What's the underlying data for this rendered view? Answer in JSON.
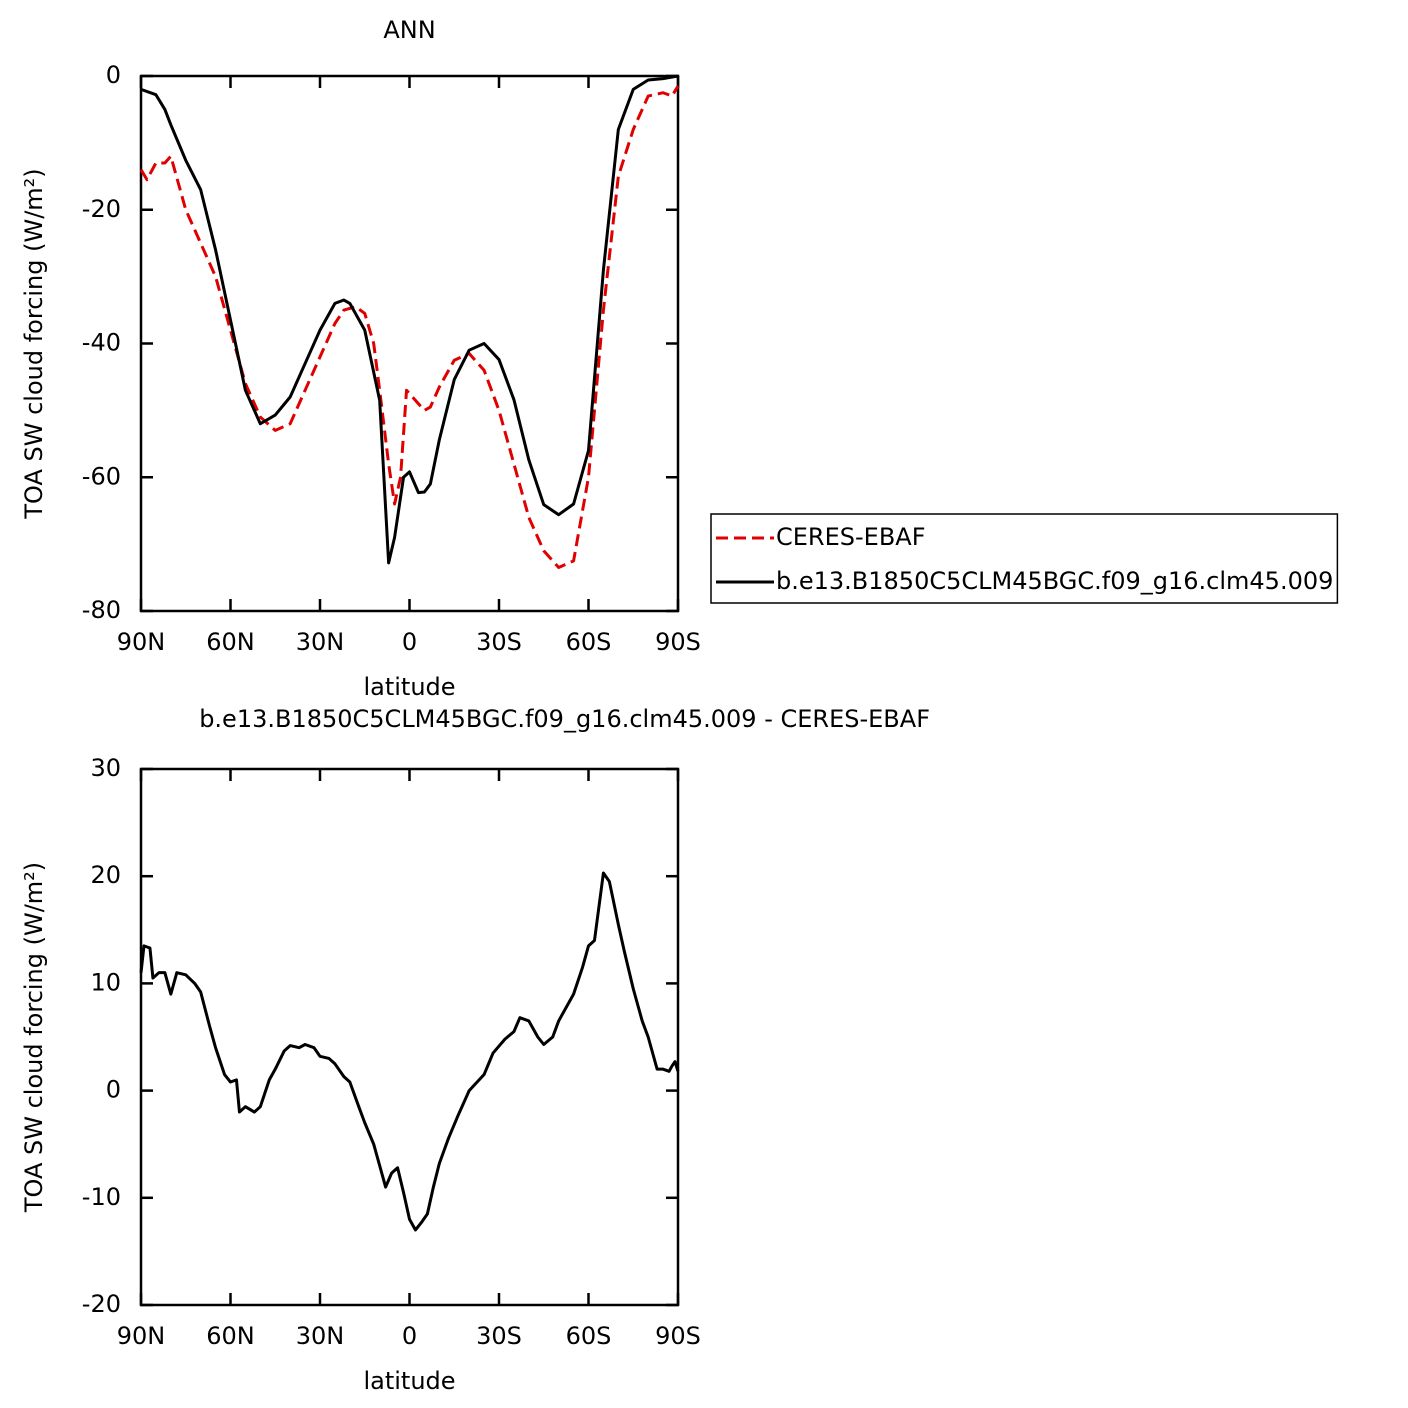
{
  "chart_data": [
    {
      "type": "line",
      "title": "ANN",
      "xlabel": "latitude",
      "ylabel": "TOA SW cloud forcing (W/m²)",
      "xlim": [
        90,
        -90
      ],
      "xticks": [
        {
          "value": 90,
          "label": "90N"
        },
        {
          "value": 60,
          "label": "60N"
        },
        {
          "value": 30,
          "label": "30N"
        },
        0,
        {
          "value": -30,
          "label": "30S"
        },
        {
          "value": -60,
          "label": "60S"
        },
        {
          "value": -90,
          "label": "90S"
        }
      ],
      "ylim": [
        -80,
        0
      ],
      "yticks": [
        -80,
        -60,
        -40,
        -20,
        0
      ],
      "legend": "right",
      "series": [
        {
          "name": "CERES-EBAF",
          "color": "#e00000",
          "dashed": true,
          "x": [
            90,
            88,
            85,
            82,
            80,
            75,
            70,
            65,
            60,
            55,
            50,
            45,
            40,
            35,
            30,
            25,
            22,
            18,
            15,
            12,
            10,
            7,
            5,
            3,
            1,
            -3,
            -5,
            -7,
            -10,
            -15,
            -20,
            -25,
            -30,
            -35,
            -40,
            -45,
            -50,
            -55,
            -60,
            -65,
            -70,
            -75,
            -80,
            -85,
            -88,
            -90
          ],
          "values": [
            -14,
            -15.5,
            -13,
            -13,
            -12,
            -20,
            -25,
            -30,
            -38,
            -46,
            -51,
            -53,
            -52,
            -47,
            -42,
            -37,
            -35,
            -34.5,
            -35.5,
            -40,
            -47,
            -58,
            -64,
            -60,
            -47,
            -49,
            -50,
            -49.5,
            -46.5,
            -42.5,
            -41.5,
            -44,
            -50,
            -58,
            -66,
            -71,
            -73.5,
            -72.5,
            -60,
            -35,
            -15,
            -8,
            -3,
            -2.5,
            -3,
            -1.5
          ]
        },
        {
          "name": "b.e13.B1850C5CLM45BGC.f09_g16.clm45.009",
          "color": "#000000",
          "dashed": false,
          "x": [
            90,
            85,
            82,
            80,
            75,
            70,
            65,
            60,
            55,
            52,
            50,
            45,
            40,
            35,
            30,
            25,
            22,
            20,
            15,
            10,
            7,
            5,
            2,
            0,
            -3,
            -5,
            -7,
            -10,
            -15,
            -20,
            -25,
            -30,
            -35,
            -40,
            -45,
            -50,
            -55,
            -60,
            -65,
            -70,
            -75,
            -80,
            -85,
            -90
          ],
          "values": [
            -2,
            -2.8,
            -5,
            -7.3,
            -12.6,
            -17,
            -26,
            -36.5,
            -47,
            -50,
            -52,
            -50.7,
            -48,
            -43,
            -38,
            -34,
            -33.5,
            -34,
            -38,
            -48.5,
            -72.8,
            -69,
            -60,
            -59.2,
            -62.3,
            -62.2,
            -61,
            -54.4,
            -45.4,
            -41,
            -40,
            -42.4,
            -48.4,
            -57.4,
            -64.1,
            -65.6,
            -64,
            -56,
            -29,
            -8,
            -2,
            -0.6,
            -0.4,
            0
          ]
        }
      ]
    },
    {
      "type": "line",
      "title": "b.e13.B1850C5CLM45BGC.f09_g16.clm45.009 - CERES-EBAF",
      "xlabel": "latitude",
      "ylabel": "TOA SW cloud forcing (W/m²)",
      "xlim": [
        90,
        -90
      ],
      "xticks": [
        {
          "value": 90,
          "label": "90N"
        },
        {
          "value": 60,
          "label": "60N"
        },
        {
          "value": 30,
          "label": "30N"
        },
        0,
        {
          "value": -30,
          "label": "30S"
        },
        {
          "value": -60,
          "label": "60S"
        },
        {
          "value": -90,
          "label": "90S"
        }
      ],
      "ylim": [
        -20,
        30
      ],
      "yticks": [
        -20,
        -10,
        0,
        10,
        20,
        30
      ],
      "series": [
        {
          "color": "#000000",
          "dashed": false,
          "x": [
            90,
            89,
            87,
            86,
            84,
            82,
            80,
            78,
            75,
            72,
            70,
            67,
            65,
            62,
            60,
            58,
            57,
            55,
            52,
            50,
            47,
            45,
            42,
            40,
            37,
            35,
            32,
            30,
            27,
            25,
            22,
            20,
            17,
            15,
            12,
            10,
            8,
            6,
            4,
            2,
            0,
            -2,
            -4,
            -6,
            -8,
            -10,
            -13,
            -16,
            -20,
            -25,
            -28,
            -32,
            -35,
            -37,
            -40,
            -43,
            -45,
            -48,
            -50,
            -55,
            -58,
            -60,
            -62,
            -65,
            -67,
            -70,
            -72,
            -75,
            -78,
            -80,
            -83,
            -85,
            -87,
            -88,
            -89,
            -90
          ],
          "values": [
            11,
            13.5,
            13.3,
            10.5,
            11,
            11,
            9,
            11,
            10.8,
            10,
            9.2,
            6,
            4,
            1.5,
            0.8,
            1,
            -2,
            -1.5,
            -2,
            -1.5,
            1,
            2,
            3.7,
            4.2,
            4,
            4.3,
            4,
            3.2,
            3,
            2.5,
            1.3,
            0.8,
            -1.5,
            -3,
            -5,
            -7,
            -9,
            -7.7,
            -7.2,
            -9.5,
            -12,
            -13,
            -12.3,
            -11.5,
            -9,
            -6.8,
            -4.5,
            -2.5,
            0,
            1.5,
            3.5,
            4.8,
            5.5,
            6.8,
            6.5,
            5,
            4.3,
            5,
            6.5,
            9,
            11.5,
            13.5,
            14,
            20.3,
            19.5,
            15.5,
            13,
            9.5,
            6.5,
            5,
            2,
            2,
            1.8,
            2.3,
            2.7,
            1.8
          ]
        }
      ]
    }
  ]
}
